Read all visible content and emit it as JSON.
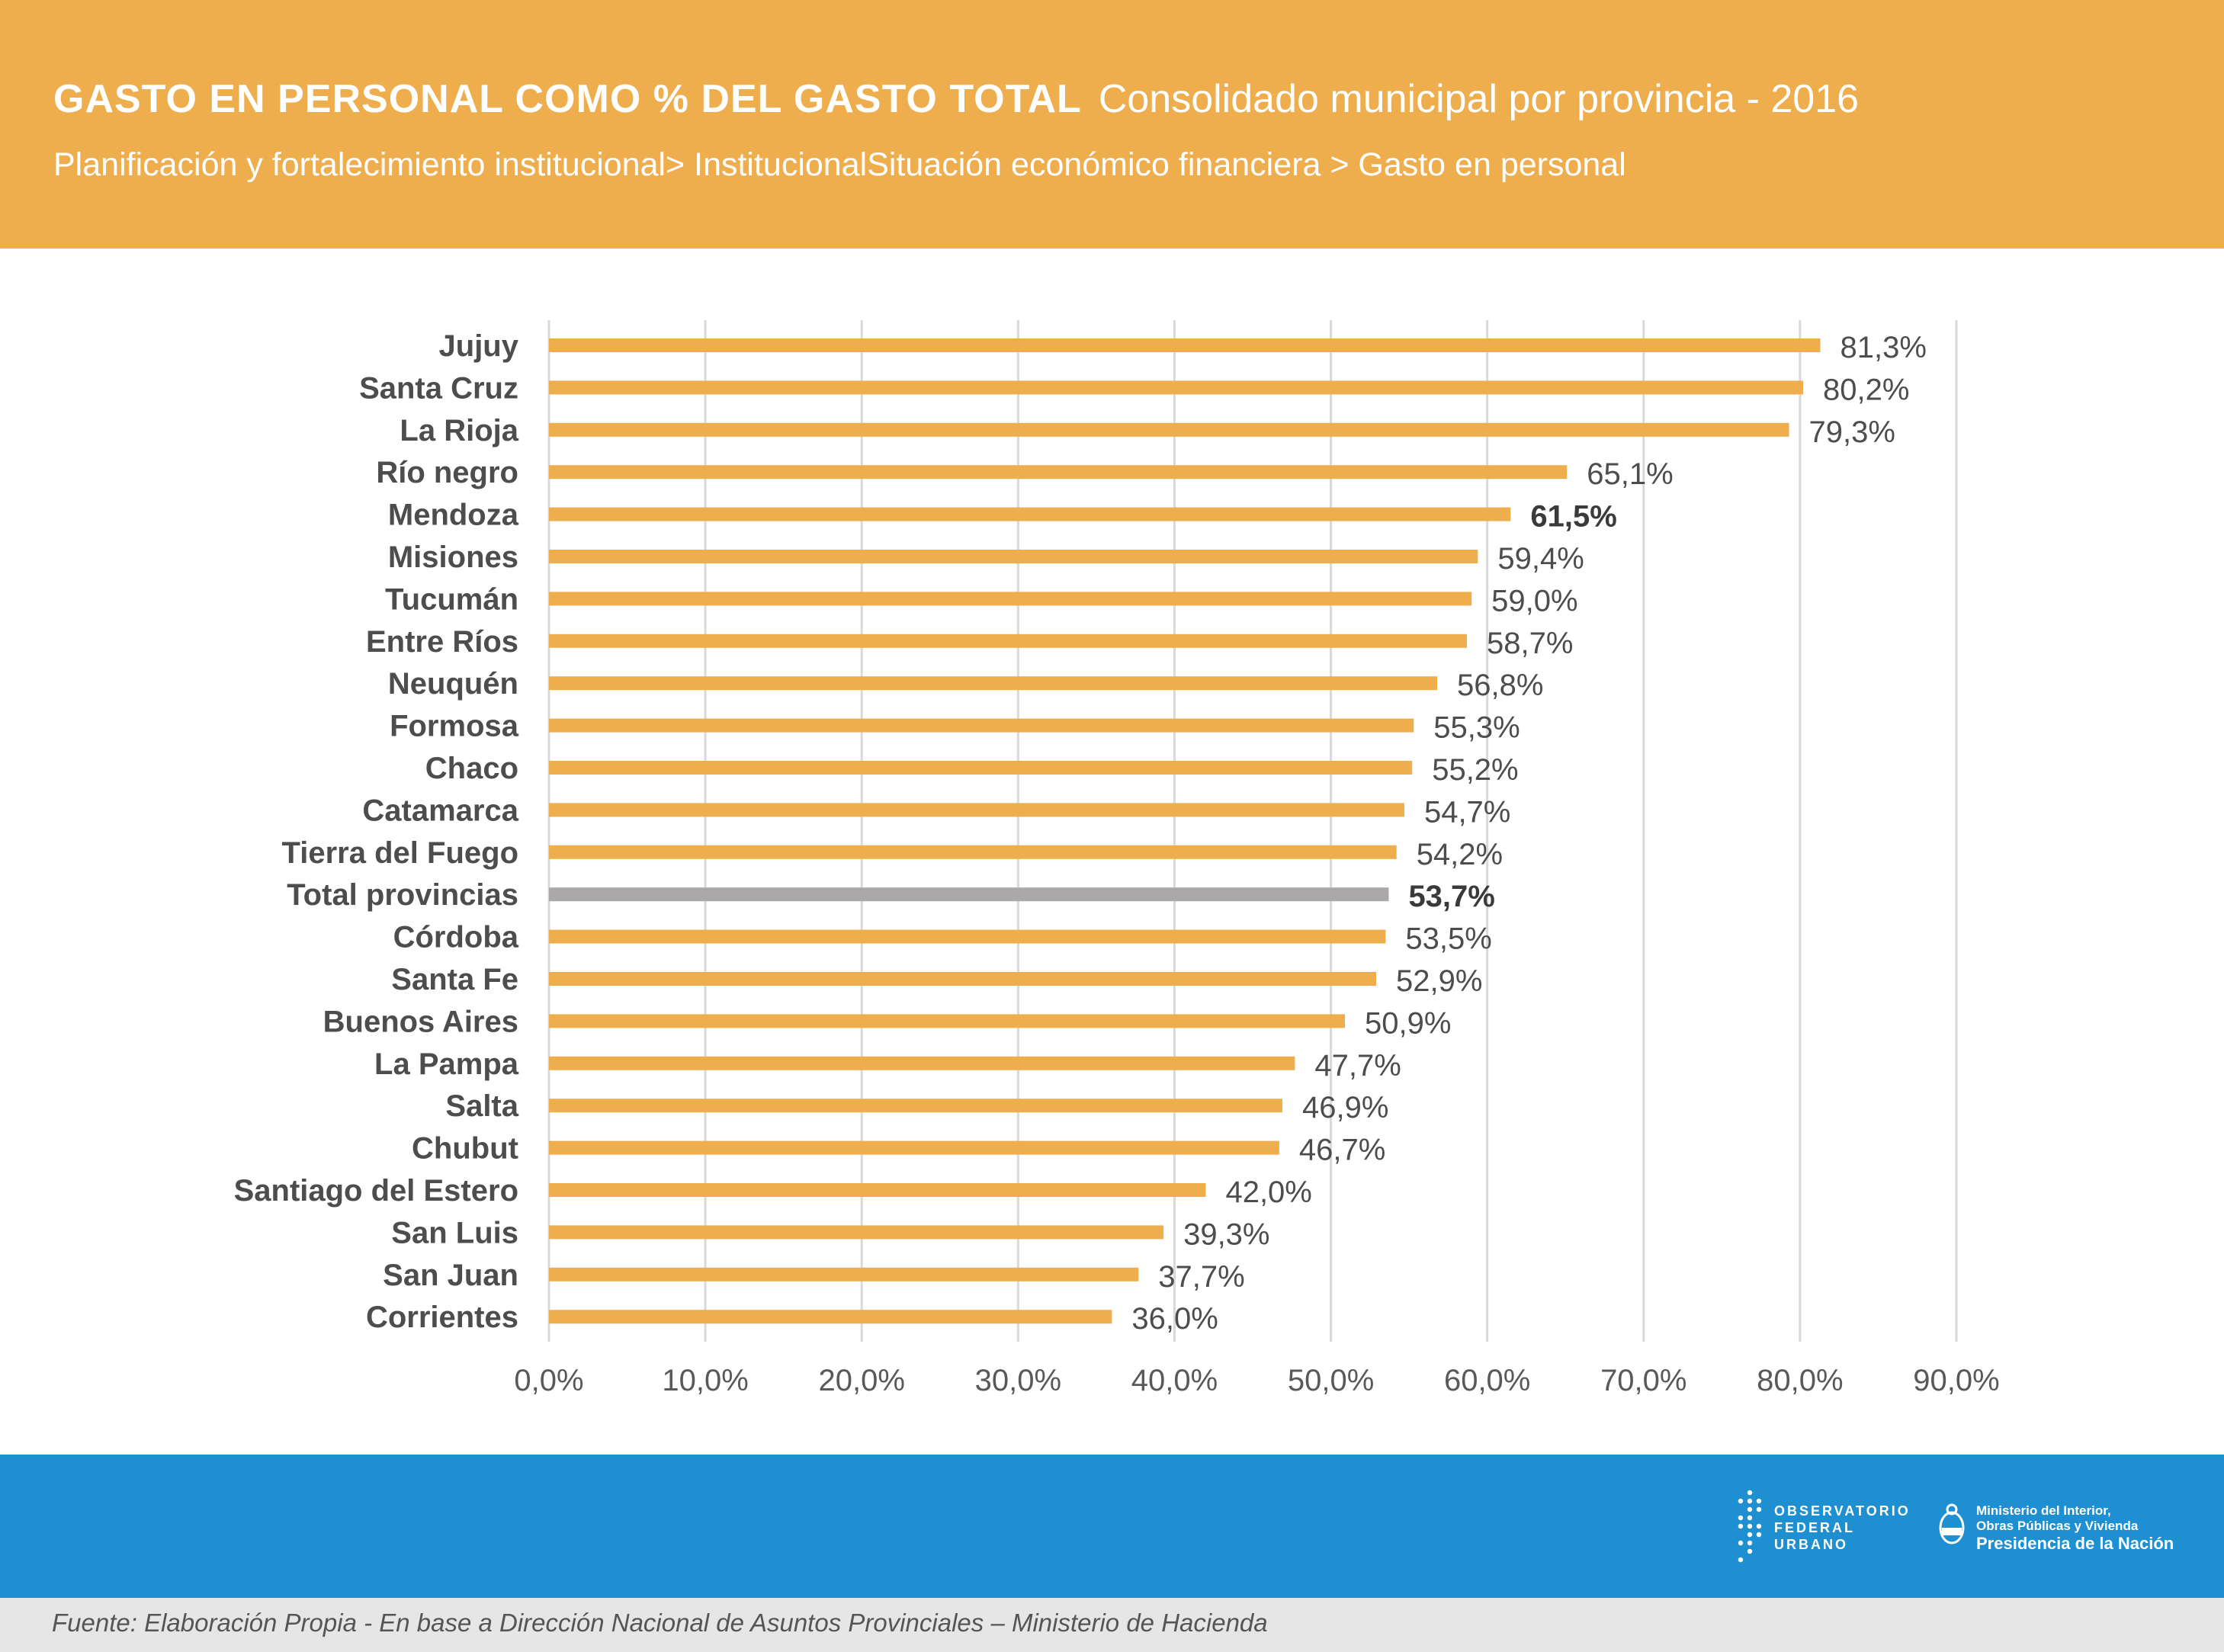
{
  "header": {
    "title": "GASTO EN PERSONAL COMO % DEL GASTO TOTAL",
    "title_suffix": "Consolidado municipal por  provincia  - 2016",
    "subtitle": "Planificación y fortalecimiento institucional> InstitucionalSituación económico financiera > Gasto en personal"
  },
  "colors": {
    "header_bg": "#efae4e",
    "bar": "#efae4e",
    "bar_highlight": "#aaa8a9",
    "footer_band": "#1e8fd0",
    "source_band": "#e6e6e6"
  },
  "chart_data": {
    "type": "bar",
    "orientation": "horizontal",
    "categories": [
      "Jujuy",
      "Santa Cruz",
      "La Rioja",
      "Río negro",
      "Mendoza",
      "Misiones",
      "Tucumán",
      "Entre Ríos",
      "Neuquén",
      "Formosa",
      "Chaco",
      "Catamarca",
      "Tierra del Fuego",
      "Total provincias",
      "Córdoba",
      "Santa Fe",
      "Buenos Aires",
      "La Pampa",
      "Salta",
      "Chubut",
      "Santiago del Estero",
      "San Luis",
      "San Juan",
      "Corrientes"
    ],
    "values": [
      81.3,
      80.2,
      79.3,
      65.1,
      61.5,
      59.4,
      59.0,
      58.7,
      56.8,
      55.3,
      55.2,
      54.7,
      54.2,
      53.7,
      53.5,
      52.9,
      50.9,
      47.7,
      46.9,
      46.7,
      42.0,
      39.3,
      37.7,
      36.0
    ],
    "value_labels": [
      "81,3%",
      "80,2%",
      "79,3%",
      "65,1%",
      "61,5%",
      "59,4%",
      "59,0%",
      "58,7%",
      "56,8%",
      "55,3%",
      "55,2%",
      "54,7%",
      "54,2%",
      "53,7%",
      "53,5%",
      "52,9%",
      "50,9%",
      "47,7%",
      "46,9%",
      "46,7%",
      "42,0%",
      "39,3%",
      "37,7%",
      "36,0%"
    ],
    "highlighted": [
      "Total provincias"
    ],
    "bold_labels": [
      "Mendoza",
      "Total provincias"
    ],
    "xlim": [
      0,
      90
    ],
    "x_ticks": [
      0,
      10,
      20,
      30,
      40,
      50,
      60,
      70,
      80,
      90
    ],
    "x_tick_labels": [
      "0,0%",
      "10,0%",
      "20,0%",
      "30,0%",
      "40,0%",
      "50,0%",
      "60,0%",
      "70,0%",
      "80,0%",
      "90,0%"
    ],
    "grid": true,
    "title": "",
    "xlabel": "",
    "ylabel": ""
  },
  "footer": {
    "source": "Fuente: Elaboración Propia - En base  a Dirección Nacional de Asuntos Provinciales – Ministerio de Hacienda",
    "logo_observatorio": [
      "OBSERVATORIO",
      "FEDERAL",
      "URBANO"
    ],
    "logo_ministerio": [
      "Ministerio del Interior,",
      "Obras Públicas y Vivienda",
      "Presidencia de la Nación"
    ],
    "logo_observatorio_icon": "dot-matrix-icon",
    "logo_ministerio_icon": "coat-of-arms-icon"
  }
}
